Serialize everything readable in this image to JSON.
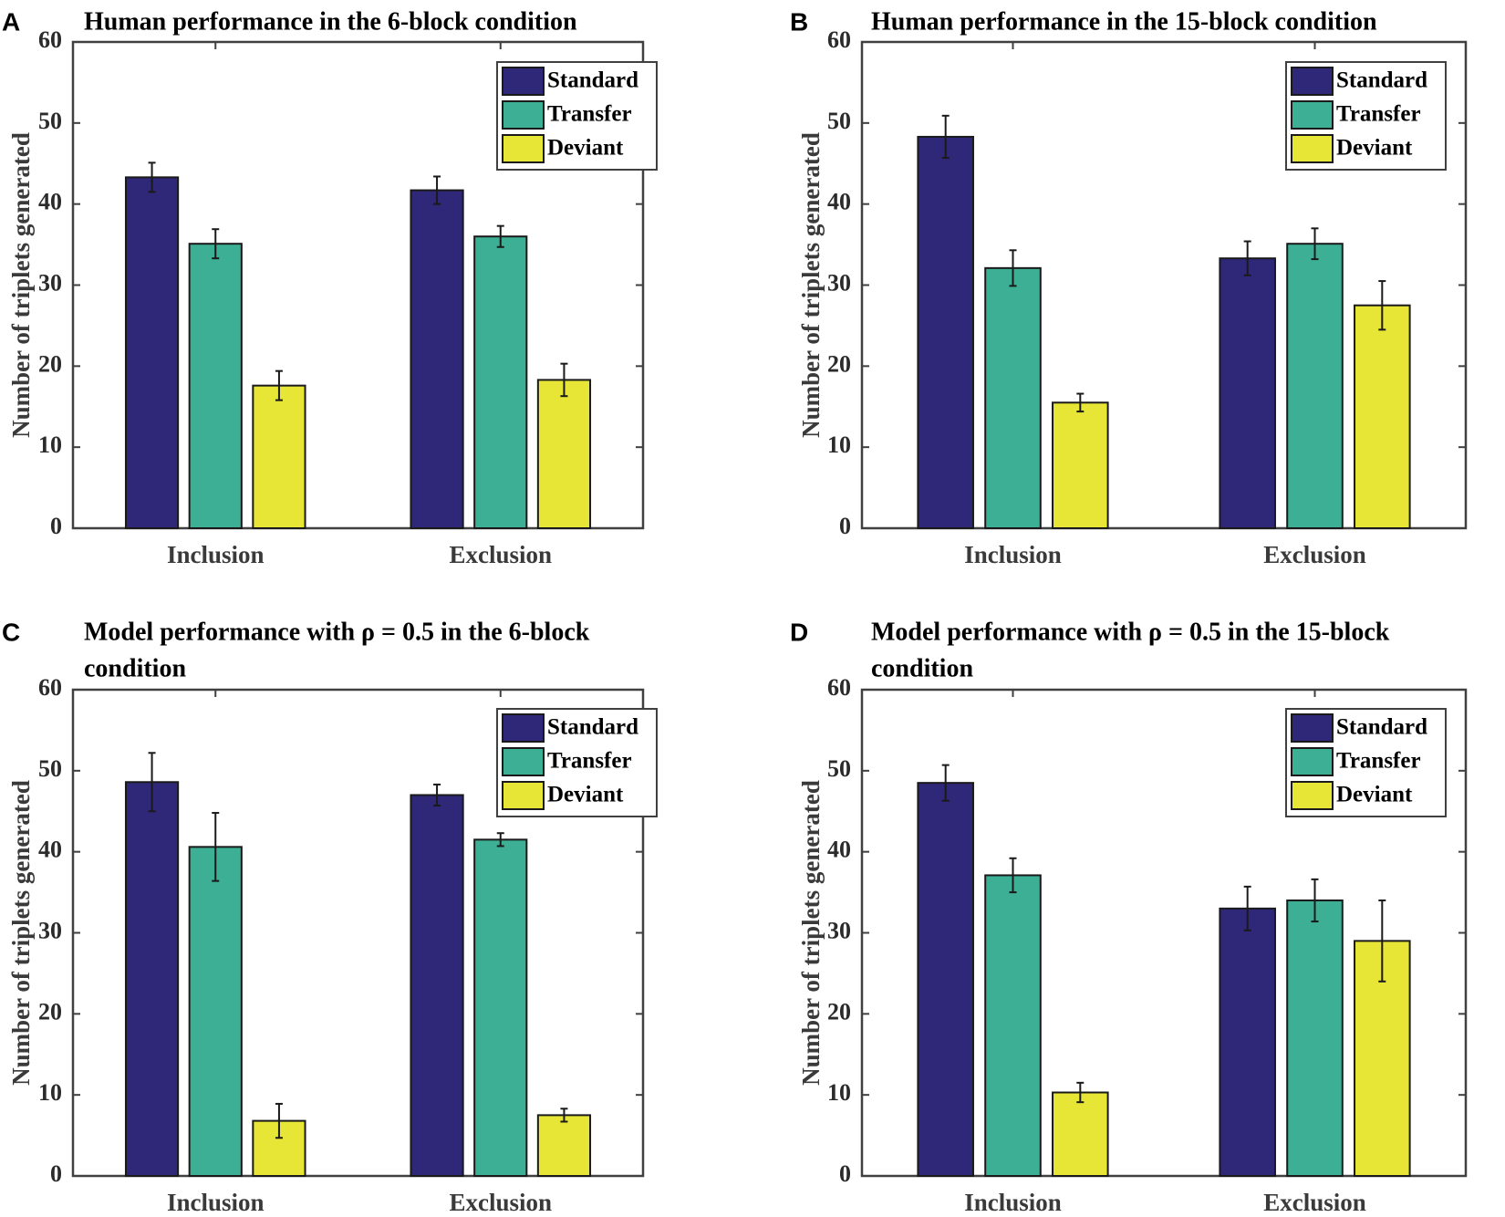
{
  "colors": {
    "Standard": "#2f2778",
    "Transfer": "#3caf95",
    "Deviant": "#e7e636",
    "axis": "#404040",
    "bar_edge": "#1a1a1a"
  },
  "chart_data": [
    {
      "panel": "A",
      "type": "bar",
      "title": [
        "Human performance in the 6-block condition"
      ],
      "ylabel": "Number of triplets generated",
      "ylim": [
        0,
        60
      ],
      "yticks": [
        0,
        10,
        20,
        30,
        40,
        50,
        60
      ],
      "categories": [
        "Inclusion",
        "Exclusion"
      ],
      "legend_position": "top-right",
      "series": [
        {
          "name": "Standard",
          "values": [
            43.3,
            41.7
          ],
          "errors": [
            1.8,
            1.7
          ]
        },
        {
          "name": "Transfer",
          "values": [
            35.1,
            36.0
          ],
          "errors": [
            1.8,
            1.3
          ]
        },
        {
          "name": "Deviant",
          "values": [
            17.6,
            18.3
          ],
          "errors": [
            1.8,
            2.0
          ]
        }
      ]
    },
    {
      "panel": "B",
      "type": "bar",
      "title": [
        "Human performance in the 15-block condition"
      ],
      "ylabel": "Number of triplets generated",
      "ylim": [
        0,
        60
      ],
      "yticks": [
        0,
        10,
        20,
        30,
        40,
        50,
        60
      ],
      "categories": [
        "Inclusion",
        "Exclusion"
      ],
      "legend_position": "top-right",
      "series": [
        {
          "name": "Standard",
          "values": [
            48.3,
            33.3
          ],
          "errors": [
            2.6,
            2.1
          ]
        },
        {
          "name": "Transfer",
          "values": [
            32.1,
            35.1
          ],
          "errors": [
            2.2,
            1.9
          ]
        },
        {
          "name": "Deviant",
          "values": [
            15.5,
            27.5
          ],
          "errors": [
            1.1,
            3.0
          ]
        }
      ]
    },
    {
      "panel": "C",
      "type": "bar",
      "title": [
        "Model performance with ρ = 0.5 in the 6-block",
        "condition"
      ],
      "ylabel": "Number of triplets generated",
      "ylim": [
        0,
        60
      ],
      "yticks": [
        0,
        10,
        20,
        30,
        40,
        50,
        60
      ],
      "categories": [
        "Inclusion",
        "Exclusion"
      ],
      "legend_position": "top-right",
      "series": [
        {
          "name": "Standard",
          "values": [
            48.6,
            47.0
          ],
          "errors": [
            3.6,
            1.3
          ]
        },
        {
          "name": "Transfer",
          "values": [
            40.6,
            41.5
          ],
          "errors": [
            4.2,
            0.8
          ]
        },
        {
          "name": "Deviant",
          "values": [
            6.8,
            7.5
          ],
          "errors": [
            2.1,
            0.8
          ]
        }
      ]
    },
    {
      "panel": "D",
      "type": "bar",
      "title": [
        "Model performance with ρ = 0.5 in the 15-block",
        "condition"
      ],
      "ylabel": "Number of triplets generated",
      "ylim": [
        0,
        60
      ],
      "yticks": [
        0,
        10,
        20,
        30,
        40,
        50,
        60
      ],
      "categories": [
        "Inclusion",
        "Exclusion"
      ],
      "legend_position": "top-right",
      "series": [
        {
          "name": "Standard",
          "values": [
            48.5,
            33.0
          ],
          "errors": [
            2.2,
            2.7
          ]
        },
        {
          "name": "Transfer",
          "values": [
            37.1,
            34.0
          ],
          "errors": [
            2.1,
            2.6
          ]
        },
        {
          "name": "Deviant",
          "values": [
            10.3,
            29.0
          ],
          "errors": [
            1.2,
            5.0
          ]
        }
      ]
    }
  ]
}
